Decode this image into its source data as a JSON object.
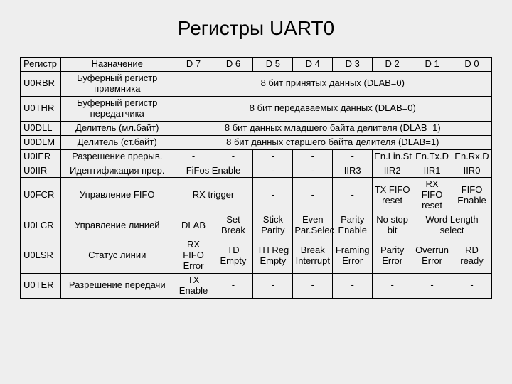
{
  "title": "Регистры UART0",
  "headers": {
    "reg": "Регистр",
    "purpose": "Назначение",
    "bits": [
      "D 7",
      "D 6",
      "D 5",
      "D 4",
      "D 3",
      "D 2",
      "D 1",
      "D 0"
    ]
  },
  "rows": {
    "rbr": {
      "reg": "U0RBR",
      "purpose": "Буферный регистр приемника",
      "span8": "8 бит принятых данных (DLAB=0)"
    },
    "thr": {
      "reg": "U0THR",
      "purpose": "Буферный регистр передатчика",
      "span8": "8 бит передаваемых данных (DLAB=0)"
    },
    "dll": {
      "reg": "U0DLL",
      "purpose": "Делитель (мл.байт)",
      "span8": "8 бит данных младшего байта делителя (DLAB=1)"
    },
    "dlm": {
      "reg": "U0DLM",
      "purpose": "Делитель (ст.байт)",
      "span8": "8 бит данных старшего байта делителя (DLAB=1)"
    },
    "ier": {
      "reg": "U0IER",
      "purpose": "Разрешение прерыв.",
      "cells": [
        "-",
        "-",
        "-",
        "-",
        "-",
        "En.Lin.St",
        "En.Tx.D",
        "En.Rx.D"
      ]
    },
    "iir": {
      "reg": "U0IIR",
      "purpose": "Идентификация прер.",
      "cells": [
        "FiFos Enable",
        "-",
        "-",
        "IIR3",
        "IIR2",
        "IIR1",
        "IIR0"
      ],
      "d7d6_span": true
    },
    "fcr": {
      "reg": "U0FCR",
      "purpose": "Управление FIFO",
      "cells": [
        "RX trigger",
        "-",
        "-",
        "-",
        "TX FIFO reset",
        "RX FIFO reset",
        "FIFO Enable"
      ],
      "d7d6_span": true
    },
    "lcr": {
      "reg": "U0LCR",
      "purpose": "Управление линией",
      "cells": [
        "DLAB",
        "Set Break",
        "Stick Parity",
        "Even Par.Selec",
        "Parity Enable",
        "No stop bit",
        "Word Length select"
      ],
      "d1d0_span": true
    },
    "lsr": {
      "reg": "U0LSR",
      "purpose": "Статус линии",
      "cells": [
        "RX FIFO Error",
        "TD Empty",
        "TH Reg Empty",
        "Break Interrupt",
        "Framing Error",
        "Parity Error",
        "Overrun Error",
        "RD ready"
      ]
    },
    "ter": {
      "reg": "U0TER",
      "purpose": "Разрешение передачи",
      "cells": [
        "TX Enable",
        "-",
        "-",
        "-",
        "-",
        "-",
        "-",
        "-"
      ]
    }
  }
}
